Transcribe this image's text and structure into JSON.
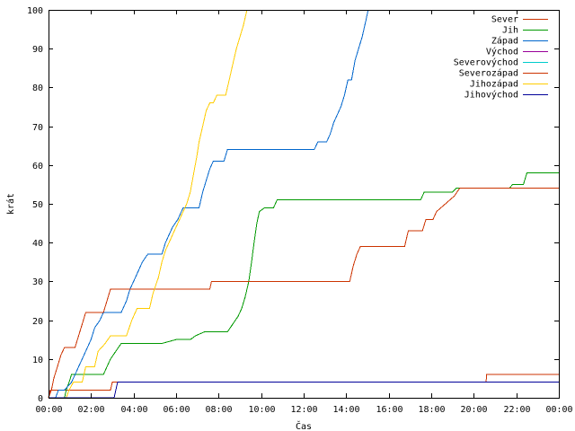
{
  "chart_data": {
    "type": "line",
    "title": "",
    "xlabel": "Čas",
    "ylabel": "krát",
    "xlim_minutes": [
      0,
      1440
    ],
    "ylim": [
      0,
      100
    ],
    "x_tick_labels": [
      "00:00",
      "02:00",
      "04:00",
      "06:00",
      "08:00",
      "10:00",
      "12:00",
      "14:00",
      "16:00",
      "18:00",
      "20:00",
      "22:00",
      "00:00"
    ],
    "y_ticks": [
      0,
      10,
      20,
      30,
      40,
      50,
      60,
      70,
      80,
      90,
      100
    ],
    "grid": false,
    "legend_position": "top-right",
    "series": [
      {
        "name": "Sever",
        "color": "#cc3300",
        "points": [
          [
            "00:00",
            0
          ],
          [
            "00:02",
            1
          ],
          [
            "00:05",
            2
          ],
          [
            "02:55",
            2
          ],
          [
            "03:00",
            4
          ],
          [
            "20:35",
            4
          ],
          [
            "20:36",
            6
          ],
          [
            "24:00",
            6
          ]
        ]
      },
      {
        "name": "Jih",
        "color": "#009900",
        "points": [
          [
            "00:00",
            0
          ],
          [
            "00:45",
            0
          ],
          [
            "00:50",
            2
          ],
          [
            "00:58",
            4
          ],
          [
            "01:05",
            6
          ],
          [
            "02:35",
            6
          ],
          [
            "02:45",
            8
          ],
          [
            "02:55",
            10
          ],
          [
            "03:10",
            12
          ],
          [
            "03:25",
            14
          ],
          [
            "05:20",
            14
          ],
          [
            "06:00",
            15
          ],
          [
            "06:40",
            15
          ],
          [
            "06:55",
            16
          ],
          [
            "07:20",
            17
          ],
          [
            "08:25",
            17
          ],
          [
            "08:40",
            19
          ],
          [
            "08:55",
            21
          ],
          [
            "09:05",
            23
          ],
          [
            "09:15",
            26
          ],
          [
            "09:25",
            30
          ],
          [
            "09:33",
            35
          ],
          [
            "09:40",
            40
          ],
          [
            "09:48",
            45
          ],
          [
            "09:55",
            48
          ],
          [
            "10:10",
            49
          ],
          [
            "10:35",
            49
          ],
          [
            "10:45",
            51
          ],
          [
            "17:30",
            51
          ],
          [
            "17:40",
            53
          ],
          [
            "19:00",
            53
          ],
          [
            "19:10",
            54
          ],
          [
            "21:40",
            54
          ],
          [
            "21:50",
            55
          ],
          [
            "22:20",
            55
          ],
          [
            "22:30",
            58
          ],
          [
            "24:00",
            58
          ]
        ]
      },
      {
        "name": "Západ",
        "color": "#0066cc",
        "points": [
          [
            "00:00",
            0
          ],
          [
            "00:20",
            0
          ],
          [
            "00:28",
            2
          ],
          [
            "00:45",
            2
          ],
          [
            "01:05",
            4
          ],
          [
            "01:15",
            6
          ],
          [
            "01:25",
            8
          ],
          [
            "01:35",
            10
          ],
          [
            "01:45",
            12
          ],
          [
            "02:00",
            15
          ],
          [
            "02:10",
            18
          ],
          [
            "02:25",
            20
          ],
          [
            "02:35",
            22
          ],
          [
            "03:25",
            22
          ],
          [
            "03:40",
            25
          ],
          [
            "03:50",
            28
          ],
          [
            "04:00",
            30
          ],
          [
            "04:15",
            33
          ],
          [
            "04:25",
            35
          ],
          [
            "04:40",
            37
          ],
          [
            "05:20",
            37
          ],
          [
            "05:30",
            40
          ],
          [
            "05:40",
            42
          ],
          [
            "05:50",
            44
          ],
          [
            "06:05",
            46
          ],
          [
            "06:20",
            49
          ],
          [
            "07:05",
            49
          ],
          [
            "07:15",
            53
          ],
          [
            "07:25",
            56
          ],
          [
            "07:35",
            59
          ],
          [
            "07:45",
            61
          ],
          [
            "08:15",
            61
          ],
          [
            "08:25",
            64
          ],
          [
            "12:30",
            64
          ],
          [
            "12:40",
            66
          ],
          [
            "13:05",
            66
          ],
          [
            "13:15",
            68
          ],
          [
            "13:25",
            71
          ],
          [
            "13:35",
            73
          ],
          [
            "13:45",
            75
          ],
          [
            "13:55",
            78
          ],
          [
            "14:05",
            82
          ],
          [
            "14:15",
            82
          ],
          [
            "14:25",
            87
          ],
          [
            "14:35",
            90
          ],
          [
            "14:45",
            93
          ],
          [
            "14:55",
            97
          ],
          [
            "15:02",
            100
          ]
        ]
      },
      {
        "name": "Východ",
        "color": "#990099",
        "points": []
      },
      {
        "name": "Severovýchod",
        "color": "#00cccc",
        "points": []
      },
      {
        "name": "Severozápad",
        "color": "#cc3300",
        "points": [
          [
            "00:00",
            0
          ],
          [
            "00:08",
            2
          ],
          [
            "00:15",
            5
          ],
          [
            "00:25",
            8
          ],
          [
            "00:35",
            11
          ],
          [
            "00:45",
            13
          ],
          [
            "01:15",
            13
          ],
          [
            "01:25",
            16
          ],
          [
            "01:35",
            19
          ],
          [
            "01:45",
            22
          ],
          [
            "02:35",
            22
          ],
          [
            "02:45",
            25
          ],
          [
            "02:55",
            28
          ],
          [
            "07:35",
            28
          ],
          [
            "07:40",
            30
          ],
          [
            "14:10",
            30
          ],
          [
            "14:20",
            34
          ],
          [
            "14:30",
            37
          ],
          [
            "14:40",
            39
          ],
          [
            "16:45",
            39
          ],
          [
            "16:55",
            43
          ],
          [
            "17:35",
            43
          ],
          [
            "17:45",
            46
          ],
          [
            "18:05",
            46
          ],
          [
            "18:15",
            48
          ],
          [
            "18:40",
            50
          ],
          [
            "19:05",
            52
          ],
          [
            "19:20",
            54
          ],
          [
            "24:00",
            54
          ]
        ]
      },
      {
        "name": "Jihozápad",
        "color": "#ffcc00",
        "points": [
          [
            "00:00",
            0
          ],
          [
            "00:50",
            0
          ],
          [
            "00:58",
            2
          ],
          [
            "01:10",
            4
          ],
          [
            "01:35",
            4
          ],
          [
            "01:45",
            8
          ],
          [
            "02:10",
            8
          ],
          [
            "02:20",
            12
          ],
          [
            "02:40",
            14
          ],
          [
            "02:55",
            16
          ],
          [
            "03:40",
            16
          ],
          [
            "03:55",
            20
          ],
          [
            "04:10",
            23
          ],
          [
            "04:45",
            23
          ],
          [
            "04:55",
            27
          ],
          [
            "05:10",
            31
          ],
          [
            "05:20",
            35
          ],
          [
            "05:30",
            38
          ],
          [
            "05:45",
            41
          ],
          [
            "05:55",
            43
          ],
          [
            "06:05",
            45
          ],
          [
            "06:15",
            47
          ],
          [
            "06:30",
            50
          ],
          [
            "06:40",
            53
          ],
          [
            "06:50",
            58
          ],
          [
            "06:58",
            62
          ],
          [
            "07:05",
            66
          ],
          [
            "07:15",
            70
          ],
          [
            "07:25",
            74
          ],
          [
            "07:35",
            76
          ],
          [
            "07:45",
            76
          ],
          [
            "07:55",
            78
          ],
          [
            "08:20",
            78
          ],
          [
            "08:30",
            82
          ],
          [
            "08:40",
            86
          ],
          [
            "08:50",
            90
          ],
          [
            "09:00",
            93
          ],
          [
            "09:10",
            96
          ],
          [
            "09:20",
            100
          ]
        ]
      },
      {
        "name": "Jihovýchod",
        "color": "#000099",
        "points": [
          [
            "00:00",
            0
          ],
          [
            "03:05",
            0
          ],
          [
            "03:10",
            2
          ],
          [
            "03:15",
            4
          ],
          [
            "24:00",
            4
          ]
        ]
      }
    ]
  }
}
